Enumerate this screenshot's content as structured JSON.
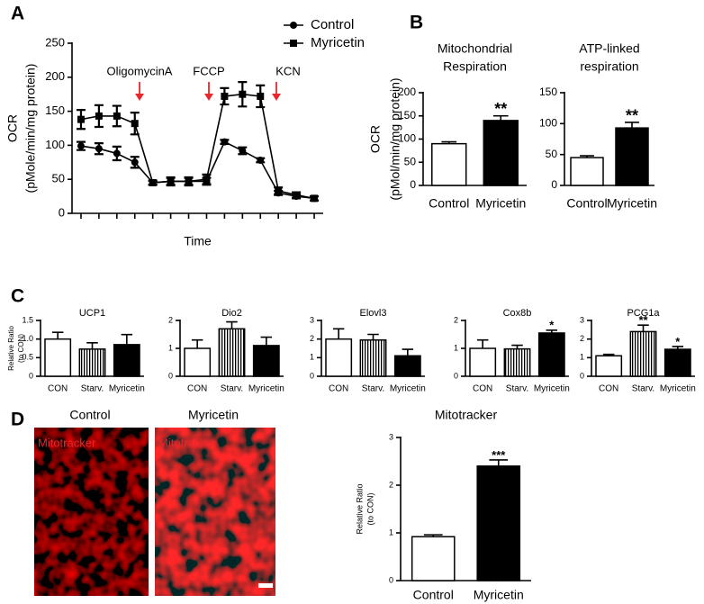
{
  "panel_labels": [
    "A",
    "B",
    "C",
    "D"
  ],
  "micrographs": {
    "titles": [
      "Control",
      "Myricetin"
    ],
    "stain": "Mitotracker"
  },
  "chart_data": [
    {
      "type": "line",
      "y_label": [
        "OCR",
        "(pMole/min/mg protein)"
      ],
      "x_label": "Time",
      "categories": [
        null,
        null,
        null,
        null,
        null,
        null,
        null,
        null,
        null,
        null,
        null,
        null,
        null,
        null
      ],
      "ylim": [
        0,
        250
      ],
      "yticks": [
        0,
        50,
        100,
        150,
        200,
        250
      ],
      "legend": "upper right",
      "series": [
        {
          "name": "Control",
          "color": "#000000",
          "marker": "circle",
          "values": [
            99,
            95,
            88,
            75,
            45,
            47,
            47,
            47,
            105,
            92,
            78,
            30,
            25,
            22
          ],
          "errors": [
            6,
            8,
            10,
            8,
            3,
            5,
            5,
            5,
            3,
            5,
            3,
            3,
            3,
            3
          ]
        },
        {
          "name": "Myricetin",
          "color": "#000000",
          "marker": "square",
          "values": [
            138,
            143,
            143,
            132,
            45,
            47,
            47,
            50,
            172,
            175,
            172,
            33,
            27,
            22
          ],
          "errors": [
            14,
            16,
            15,
            16,
            3,
            6,
            6,
            7,
            12,
            18,
            16,
            5,
            4,
            3
          ]
        }
      ],
      "annotations": [
        "OligomycinA",
        "FCCP",
        "KCN"
      ],
      "annotation_color": "#e8262c"
    },
    {
      "type": "bar",
      "title": [
        "Mitochondrial",
        "Respiration"
      ],
      "y_label": [
        "OCR",
        "(pMol/min/mg protein)"
      ],
      "categories": [
        "Control",
        "Myricetin"
      ],
      "values": [
        90,
        140
      ],
      "errors": [
        4,
        10
      ],
      "significance": [
        null,
        "**"
      ],
      "bar_fills": [
        "#ffffff",
        "#000000"
      ],
      "ylim": [
        0,
        200
      ],
      "yticks": [
        0,
        50,
        100,
        150,
        200
      ]
    },
    {
      "type": "bar",
      "title": [
        "ATP-linked",
        "respiration"
      ],
      "categories": [
        "Control",
        "Myricetin"
      ],
      "values": [
        45,
        93
      ],
      "errors": [
        3,
        9
      ],
      "significance": [
        null,
        "**"
      ],
      "bar_fills": [
        "#ffffff",
        "#000000"
      ],
      "ylim": [
        0,
        150
      ],
      "yticks": [
        0,
        50,
        100,
        150
      ]
    },
    {
      "type": "bar",
      "title": "UCP1",
      "y_label": [
        "Relative Ratio",
        "(to CON)"
      ],
      "categories": [
        "CON",
        "Starv.",
        "Myricetin"
      ],
      "values": [
        1.0,
        0.73,
        0.85
      ],
      "errors": [
        0.18,
        0.17,
        0.27
      ],
      "bar_fills": [
        "#ffffff",
        "stripes",
        "#000000"
      ],
      "ylim": [
        0,
        1.5
      ],
      "yticks": [
        0,
        0.5,
        {
          "value": 1,
          "label": "1.0"
        },
        1.5
      ]
    },
    {
      "type": "bar",
      "title": "Dio2",
      "categories": [
        "CON",
        "Starv.",
        "Myricetin"
      ],
      "values": [
        1.0,
        1.7,
        1.1
      ],
      "errors": [
        0.3,
        0.25,
        0.3
      ],
      "bar_fills": [
        "#ffffff",
        "stripes",
        "#000000"
      ],
      "ylim": [
        0,
        2
      ],
      "yticks": [
        0,
        1,
        2
      ]
    },
    {
      "type": "bar",
      "title": "Elovl3",
      "categories": [
        "CON",
        "Starv.",
        "Myricetin"
      ],
      "values": [
        2.0,
        1.95,
        1.1
      ],
      "errors": [
        0.55,
        0.3,
        0.35
      ],
      "bar_fills": [
        "#ffffff",
        "stripes",
        "#000000"
      ],
      "ylim": [
        0,
        3
      ],
      "yticks": [
        0,
        1,
        2,
        3
      ]
    },
    {
      "type": "bar",
      "title": "Cox8b",
      "categories": [
        "CON",
        "Starv.",
        "Myricetin"
      ],
      "values": [
        1.0,
        0.98,
        1.55
      ],
      "errors": [
        0.3,
        0.13,
        0.1
      ],
      "significance": [
        null,
        null,
        "*"
      ],
      "bar_fills": [
        "#ffffff",
        "stripes",
        "#000000"
      ],
      "ylim": [
        0,
        2
      ],
      "yticks": [
        0,
        1,
        2
      ]
    },
    {
      "type": "bar",
      "title": "PCG1a",
      "categories": [
        "CON",
        "Starv.",
        "Myricetin"
      ],
      "values": [
        1.1,
        2.4,
        1.45
      ],
      "errors": [
        0.08,
        0.35,
        0.15
      ],
      "significance": [
        null,
        "**",
        "*"
      ],
      "bar_fills": [
        "#ffffff",
        "stripes",
        "#000000"
      ],
      "ylim": [
        0,
        3
      ],
      "yticks": [
        0,
        1,
        2,
        3
      ]
    },
    {
      "type": "bar",
      "title": "Mitotracker",
      "y_label": [
        "Relative Ratio",
        "(to CON)"
      ],
      "categories": [
        "Control",
        "Myricetin"
      ],
      "values": [
        0.92,
        2.4
      ],
      "errors": [
        0.04,
        0.13
      ],
      "significance": [
        null,
        "***"
      ],
      "bar_fills": [
        "#ffffff",
        "#000000"
      ],
      "ylim": [
        0,
        3
      ],
      "yticks": [
        0,
        1,
        2,
        3
      ]
    }
  ]
}
